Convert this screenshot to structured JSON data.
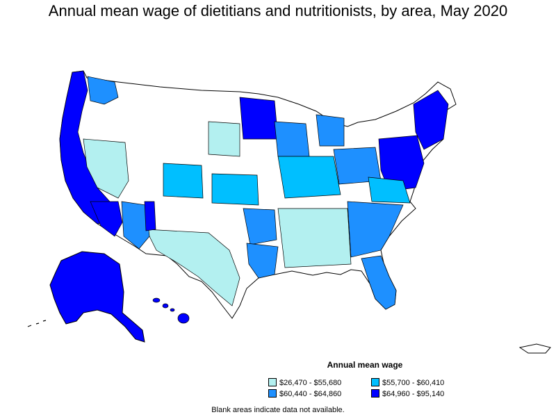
{
  "title": "Annual mean wage of dietitians and nutritionists, by area, May 2020",
  "legend": {
    "title": "Annual mean wage",
    "items": [
      {
        "label": "$26,470 - $55,680",
        "color": "#b3f0f0"
      },
      {
        "label": "$55,700 - $60,410",
        "color": "#00bfff"
      },
      {
        "label": "$60,440 - $64,860",
        "color": "#1e90ff"
      },
      {
        "label": "$64,960 - $95,140",
        "color": "#0000ff"
      }
    ]
  },
  "note": "Blank areas indicate data not available."
}
